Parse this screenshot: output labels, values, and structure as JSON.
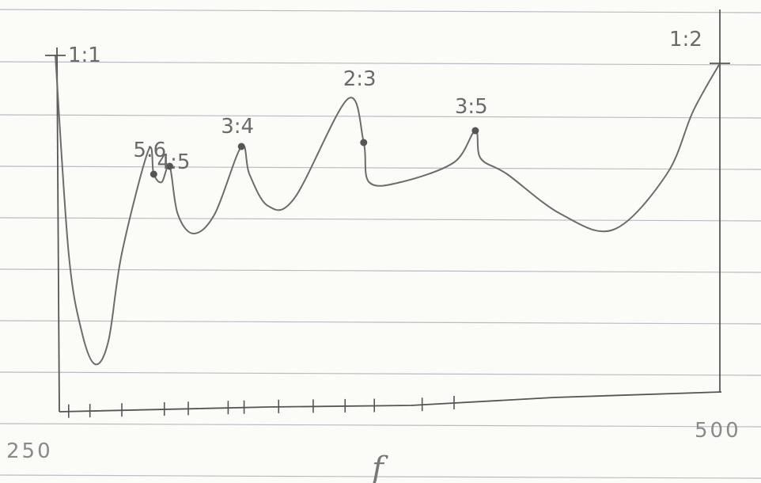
{
  "chart_data": {
    "type": "line",
    "title": "",
    "xlabel": "f",
    "ylabel": "",
    "xlim": [
      250,
      500
    ],
    "x_tick_labels": [
      "250",
      "500"
    ],
    "series": [
      {
        "x": [
          250,
          255,
          260,
          265,
          270,
          275,
          285,
          287,
          290,
          293,
          296,
          302,
          310,
          320,
          323,
          330,
          340,
          360,
          366,
          368,
          380,
          400,
          408,
          410,
          420,
          440,
          460,
          480,
          490,
          500
        ],
        "y": [
          0.9,
          0.4,
          0.2,
          0.12,
          0.18,
          0.4,
          0.66,
          0.6,
          0.58,
          0.62,
          0.5,
          0.45,
          0.5,
          0.67,
          0.6,
          0.52,
          0.54,
          0.79,
          0.68,
          0.58,
          0.58,
          0.63,
          0.71,
          0.64,
          0.6,
          0.5,
          0.46,
          0.6,
          0.76,
          0.88
        ]
      }
    ],
    "annotations": [
      {
        "label": "1:1",
        "x": 250,
        "y": 0.9
      },
      {
        "label": "5:6",
        "x": 287,
        "y": 0.66
      },
      {
        "label": "4:5",
        "x": 296,
        "y": 0.63
      },
      {
        "label": "3:4",
        "x": 320,
        "y": 0.72
      },
      {
        "label": "2:3",
        "x": 366,
        "y": 0.84
      },
      {
        "label": "3:5",
        "x": 408,
        "y": 0.77
      },
      {
        "label": "1:2",
        "x": 500,
        "y": 0.94
      }
    ],
    "grid": false,
    "legend": false
  }
}
